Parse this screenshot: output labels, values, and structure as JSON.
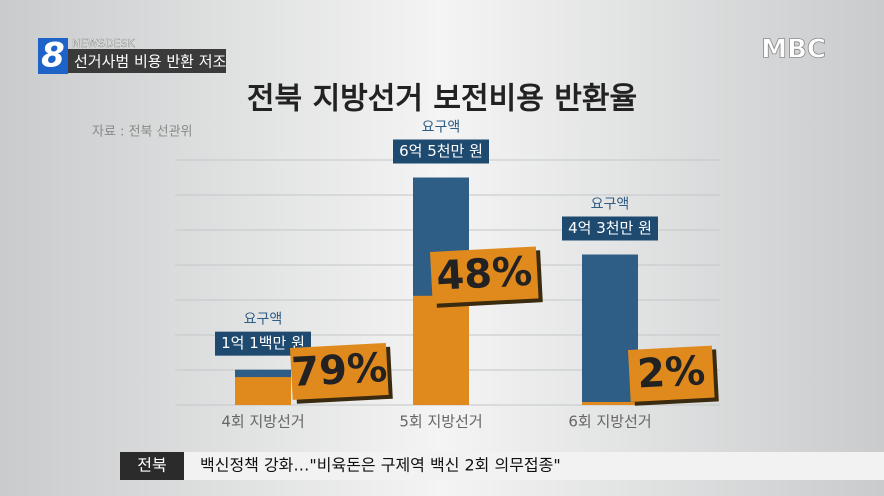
{
  "header": {
    "channel": "8",
    "program": "NEWSDESK",
    "headline": "선거사범 비용 반환 저조"
  },
  "logo": "MBC",
  "chart_data": {
    "type": "bar",
    "title": "전북 지방선거 보전비용 반환율",
    "source": "자료 : 전북 선관위",
    "categories": [
      "4회 지방선거",
      "5회 지방선거",
      "6회 지방선거"
    ],
    "series": [
      {
        "name": "요구액",
        "color": "#2e5d86",
        "values": [
          10100,
          65000,
          43000
        ],
        "value_labels": [
          "1억 1백만 원",
          "6억 5천만 원",
          "4억 3천만 원"
        ]
      }
    ],
    "rates": {
      "color": "#e08a1e",
      "values": [
        79,
        48,
        2
      ],
      "value_labels": [
        "79%",
        "48%",
        "2%"
      ]
    },
    "ylim": [
      0,
      70000
    ],
    "yticks": [
      0,
      10000,
      20000,
      30000,
      40000,
      50000,
      60000,
      70000
    ],
    "grid": true
  },
  "ticker": {
    "region": "전북",
    "text": "백신정책 강화…\"비육돈은 구제역 백신 2회 의무접종\""
  }
}
